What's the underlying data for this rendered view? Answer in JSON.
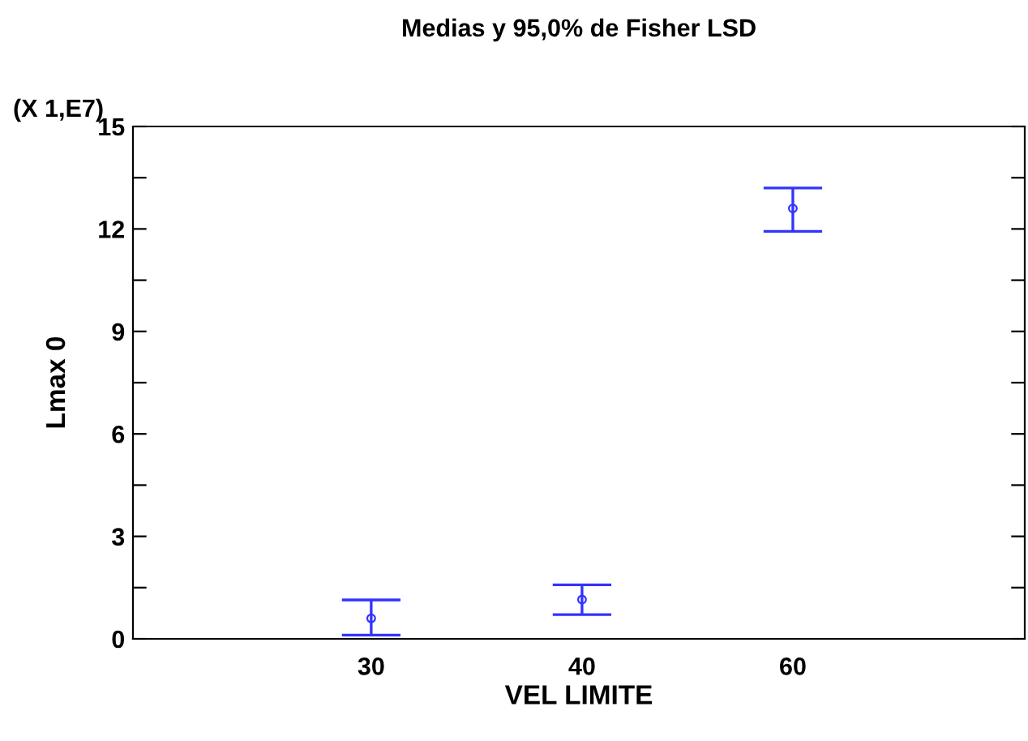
{
  "chart_data": {
    "type": "scatter",
    "title": "Medias y 95,0% de Fisher LSD",
    "xlabel": "VEL LIMITE",
    "ylabel": "Lmax 0",
    "annotations": [
      "(X 1,E7)"
    ],
    "categories": [
      "30",
      "40",
      "60"
    ],
    "series": [
      {
        "color": "#3333ff",
        "values": [
          0.6,
          1.15,
          12.6
        ],
        "errors": [
          [
            0.11,
            1.14
          ],
          [
            0.71,
            1.58
          ],
          [
            11.93,
            13.2
          ]
        ]
      }
    ],
    "marker": "circle",
    "grid": false,
    "legend": false,
    "ylim": [
      0,
      15
    ],
    "yticks": [
      0,
      {
        "value": 1.5,
        "label": null
      },
      3,
      {
        "value": 4.5,
        "label": null
      },
      6,
      {
        "value": 7.5,
        "label": null
      },
      9,
      {
        "value": 10.5,
        "label": null
      },
      12,
      {
        "value": 13.5,
        "label": null
      },
      15
    ]
  }
}
